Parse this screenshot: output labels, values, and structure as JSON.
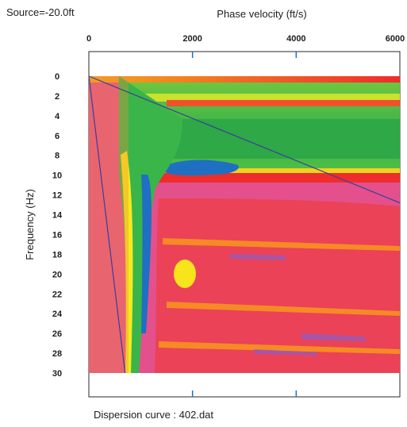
{
  "source_label": "Source=-20.0ft",
  "caption": "Dispersion curve : 402.dat",
  "chart_data": {
    "type": "heatmap",
    "xlabel": "Phase velocity (ft/s)",
    "ylabel": "Frequency (Hz)",
    "x_ticks": [
      0,
      2000,
      4000,
      6000
    ],
    "y_ticks": [
      0,
      2,
      4,
      6,
      8,
      10,
      12,
      14,
      16,
      18,
      20,
      22,
      24,
      26,
      28,
      30
    ],
    "xlim": [
      0,
      6000
    ],
    "ylim": [
      0,
      30
    ],
    "y_axis_inverted": true,
    "grid": false,
    "overlay_lines": [
      {
        "points": [
          [
            0,
            0
          ],
          [
            6000,
            12.8
          ]
        ],
        "color": "#3a3f9a"
      },
      {
        "points": [
          [
            0,
            0
          ],
          [
            700,
            30
          ]
        ],
        "color": "#3a3f9a"
      }
    ],
    "colorscale": [
      "#e04a8c",
      "#ee2d2d",
      "#f9a314",
      "#f4ea1e",
      "#39b54a",
      "#1f6fc2"
    ]
  }
}
